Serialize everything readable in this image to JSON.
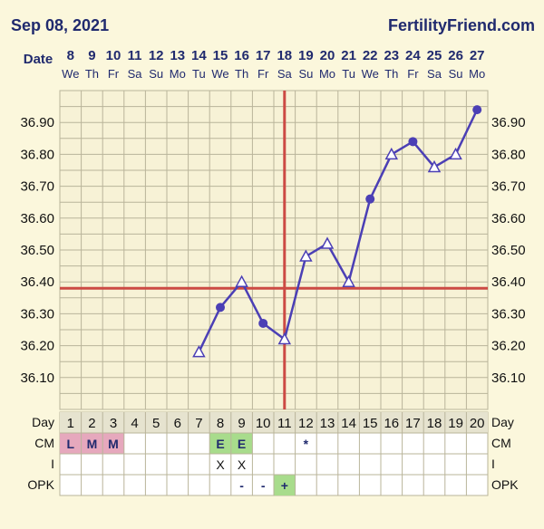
{
  "header": {
    "date": "Sep 08, 2021",
    "site": "FertilityFriend.com",
    "date_row_label": "Date"
  },
  "chart_data": {
    "type": "line",
    "dates": [
      "8",
      "9",
      "10",
      "11",
      "12",
      "13",
      "14",
      "15",
      "16",
      "17",
      "18",
      "19",
      "20",
      "21",
      "22",
      "23",
      "24",
      "25",
      "26",
      "27"
    ],
    "weekdays": [
      "We",
      "Th",
      "Fr",
      "Sa",
      "Su",
      "Mo",
      "Tu",
      "We",
      "Th",
      "Fr",
      "Sa",
      "Su",
      "Mo",
      "Tu",
      "We",
      "Th",
      "Fr",
      "Sa",
      "Su",
      "Mo"
    ],
    "cycle_days": [
      "1",
      "2",
      "3",
      "4",
      "5",
      "6",
      "7",
      "8",
      "9",
      "10",
      "11",
      "12",
      "13",
      "14",
      "15",
      "16",
      "17",
      "18",
      "19",
      "20"
    ],
    "y_ticks": [
      "36.90",
      "36.80",
      "36.70",
      "36.60",
      "36.50",
      "36.40",
      "36.30",
      "36.20",
      "36.10"
    ],
    "ylim": [
      36.0,
      37.0
    ],
    "series": [
      {
        "x": [
          7,
          8,
          9,
          10,
          11,
          12,
          13,
          14,
          15,
          16,
          17,
          18,
          19,
          20
        ],
        "values": [
          36.18,
          36.32,
          36.4,
          36.27,
          36.22,
          36.48,
          36.52,
          36.4,
          36.66,
          36.8,
          36.84,
          36.76,
          36.8,
          36.94
        ],
        "markers": [
          "tri",
          "dot",
          "tri",
          "dot",
          "tri",
          "tri",
          "tri",
          "tri",
          "dot",
          "tri",
          "dot",
          "tri",
          "tri",
          "dot"
        ]
      }
    ],
    "coverline": 36.38,
    "ovulation_day": 11,
    "line_color": "#4b3fb5",
    "coverline_color": "#cc4a44",
    "grid_color": "#b9b49a"
  },
  "bottom_table": {
    "day_label": "Day",
    "cm_label": "CM",
    "i_label": "I",
    "opk_label": "OPK",
    "cm": [
      "L",
      "M",
      "M",
      "",
      "",
      "",
      "",
      "E",
      "E",
      "",
      "",
      "*",
      "",
      "",
      "",
      "",
      "",
      "",
      "",
      ""
    ],
    "intercourse": [
      "",
      "",
      "",
      "",
      "",
      "",
      "",
      "X",
      "X",
      "",
      "",
      "",
      "",
      "",
      "",
      "",
      "",
      "",
      "",
      ""
    ],
    "opk": [
      "",
      "",
      "",
      "",
      "",
      "",
      "",
      "",
      "-",
      "-",
      "+",
      "",
      "",
      "",
      "",
      "",
      "",
      "",
      "",
      ""
    ]
  },
  "colors": {
    "background": "#fbf7dc",
    "text": "#202a6e",
    "menses_fill": "#e6a8bd",
    "fertile_fill": "#a8dc8c",
    "opk_positive_fill": "#a8dc8c"
  }
}
